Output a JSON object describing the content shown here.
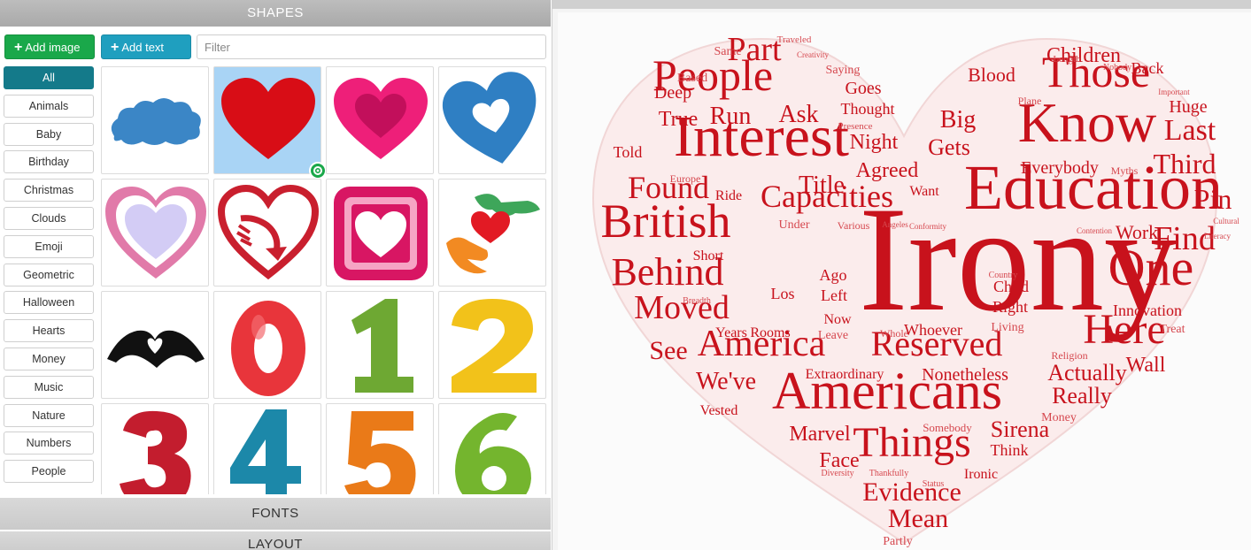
{
  "panel": {
    "shapes_title": "SHAPES",
    "fonts_title": "FONTS",
    "layout_title": "LAYOUT"
  },
  "toolbar": {
    "add_image_label": "Add image",
    "add_text_label": "Add text",
    "filter_placeholder": "Filter"
  },
  "categories": [
    "All",
    "Animals",
    "Baby",
    "Birthday",
    "Christmas",
    "Clouds",
    "Emoji",
    "Geometric",
    "Halloween",
    "Hearts",
    "Money",
    "Music",
    "Nature",
    "Numbers",
    "People"
  ],
  "active_category": "All",
  "shapes": [
    {
      "name": "cloud-shape-icon"
    },
    {
      "name": "red-heart-shape-icon",
      "selected": true
    },
    {
      "name": "pink-double-heart-shape-icon"
    },
    {
      "name": "blue-heart-shape-icon"
    },
    {
      "name": "lilac-heart-shape-icon"
    },
    {
      "name": "heart-arrow-shape-icon"
    },
    {
      "name": "framed-heart-shape-icon"
    },
    {
      "name": "hands-bird-heart-shape-icon"
    },
    {
      "name": "hand-heart-shape-icon"
    },
    {
      "name": "number-0-shape-icon",
      "text": "0"
    },
    {
      "name": "number-1-shape-icon",
      "text": "1"
    },
    {
      "name": "number-2-shape-icon",
      "text": "2"
    },
    {
      "name": "number-3-shape-icon",
      "text": "3"
    },
    {
      "name": "number-4-shape-icon",
      "text": "4"
    },
    {
      "name": "number-5-shape-icon",
      "text": "5"
    },
    {
      "name": "number-6-shape-icon",
      "text": "6"
    }
  ],
  "colors": {
    "accent": "#147a8a",
    "add_image": "#1aa84a",
    "add_text": "#1f9fbf",
    "word": "#c8121c",
    "selected_tile": "#a9d4f5"
  },
  "word_cloud": {
    "words": [
      {
        "t": "Irony",
        "big": true
      },
      {
        "t": "Education"
      },
      {
        "t": "Interest"
      },
      {
        "t": "Know"
      },
      {
        "t": "People"
      },
      {
        "t": "Those"
      },
      {
        "t": "Americans"
      },
      {
        "t": "Things"
      },
      {
        "t": "America"
      },
      {
        "t": "Reserved"
      },
      {
        "t": "British"
      },
      {
        "t": "Behind"
      },
      {
        "t": "One"
      },
      {
        "t": "Here"
      },
      {
        "t": "Found"
      },
      {
        "t": "Capacities"
      },
      {
        "t": "Moved"
      },
      {
        "t": "Part"
      },
      {
        "t": "Find"
      },
      {
        "t": "Pin"
      },
      {
        "t": "Third"
      },
      {
        "t": "Last"
      },
      {
        "t": "Evidence"
      },
      {
        "t": "Mean"
      },
      {
        "t": "Children"
      },
      {
        "t": "Big"
      },
      {
        "t": "Blood"
      },
      {
        "t": "Run"
      },
      {
        "t": "True"
      },
      {
        "t": "Ask"
      },
      {
        "t": "Night"
      },
      {
        "t": "Gets"
      },
      {
        "t": "Title"
      },
      {
        "t": "Agreed"
      },
      {
        "t": "See"
      },
      {
        "t": "Actually"
      },
      {
        "t": "Really"
      },
      {
        "t": "Sirena"
      },
      {
        "t": "Marvel"
      },
      {
        "t": "Face"
      },
      {
        "t": "We've"
      },
      {
        "t": "Wall"
      },
      {
        "t": "Work"
      },
      {
        "t": "Huge"
      },
      {
        "t": "Back"
      },
      {
        "t": "Deep"
      },
      {
        "t": "Goes"
      },
      {
        "t": "Thought"
      },
      {
        "t": "Saying"
      },
      {
        "t": "Same"
      },
      {
        "t": "Based"
      },
      {
        "t": "Traveled"
      },
      {
        "t": "Creativity"
      },
      {
        "t": "Length"
      },
      {
        "t": "Nobody"
      },
      {
        "t": "Plane"
      },
      {
        "t": "Important"
      },
      {
        "t": "Everybody"
      },
      {
        "t": "Myths"
      },
      {
        "t": "Cultural"
      },
      {
        "t": "Literacy"
      },
      {
        "t": "Contention"
      },
      {
        "t": "Told"
      },
      {
        "t": "Europe"
      },
      {
        "t": "Ride"
      },
      {
        "t": "Want"
      },
      {
        "t": "Under"
      },
      {
        "t": "Various"
      },
      {
        "t": "Angeles"
      },
      {
        "t": "Conformity"
      },
      {
        "t": "Short"
      },
      {
        "t": "Breadth"
      },
      {
        "t": "Ago"
      },
      {
        "t": "Left"
      },
      {
        "t": "Los"
      },
      {
        "t": "Now"
      },
      {
        "t": "Leave"
      },
      {
        "t": "Years"
      },
      {
        "t": "Rooms"
      },
      {
        "t": "Whole"
      },
      {
        "t": "Whoever"
      },
      {
        "t": "Country"
      },
      {
        "t": "Child"
      },
      {
        "t": "Right"
      },
      {
        "t": "Living"
      },
      {
        "t": "Innovation"
      },
      {
        "t": "Treat"
      },
      {
        "t": "Religion"
      },
      {
        "t": "Money"
      },
      {
        "t": "Extraordinary"
      },
      {
        "t": "Nonetheless"
      },
      {
        "t": "Vested"
      },
      {
        "t": "Somebody"
      },
      {
        "t": "Think"
      },
      {
        "t": "Ironic"
      },
      {
        "t": "Diversity"
      },
      {
        "t": "Thankfully"
      },
      {
        "t": "Status"
      },
      {
        "t": "Partly"
      },
      {
        "t": "Presence"
      }
    ]
  }
}
